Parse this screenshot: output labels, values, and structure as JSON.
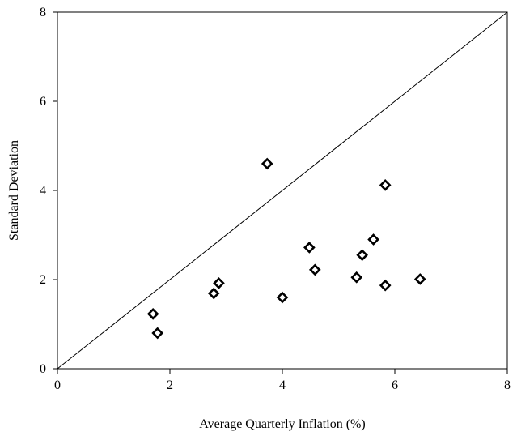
{
  "chart_data": {
    "type": "scatter",
    "title": "",
    "xlabel": "Average Quarterly Inflation (%)",
    "ylabel": "Standard Deviation",
    "xlim": [
      0,
      8
    ],
    "ylim": [
      0,
      8
    ],
    "xticks": [
      "0",
      "2",
      "4",
      "6",
      "8"
    ],
    "yticks": [
      "0",
      "2",
      "4",
      "6",
      "8"
    ],
    "grid": false,
    "legend": "none",
    "marker": "open-diamond",
    "reference_line": {
      "type": "45-degree",
      "from": [
        0,
        0
      ],
      "to": [
        8,
        8
      ]
    },
    "series": [
      {
        "points": [
          {
            "x": 1.7,
            "y": 1.23
          },
          {
            "x": 1.78,
            "y": 0.8
          },
          {
            "x": 2.78,
            "y": 1.69
          },
          {
            "x": 2.87,
            "y": 1.92
          },
          {
            "x": 3.73,
            "y": 4.6
          },
          {
            "x": 4.0,
            "y": 1.6
          },
          {
            "x": 4.48,
            "y": 2.72
          },
          {
            "x": 4.58,
            "y": 2.22
          },
          {
            "x": 5.32,
            "y": 2.05
          },
          {
            "x": 5.42,
            "y": 2.55
          },
          {
            "x": 5.62,
            "y": 2.9
          },
          {
            "x": 5.83,
            "y": 4.12
          },
          {
            "x": 5.83,
            "y": 1.87
          },
          {
            "x": 6.45,
            "y": 2.01
          }
        ]
      }
    ]
  },
  "colors": {
    "marker": "#000000",
    "axis": "#000000",
    "background": "#ffffff"
  }
}
